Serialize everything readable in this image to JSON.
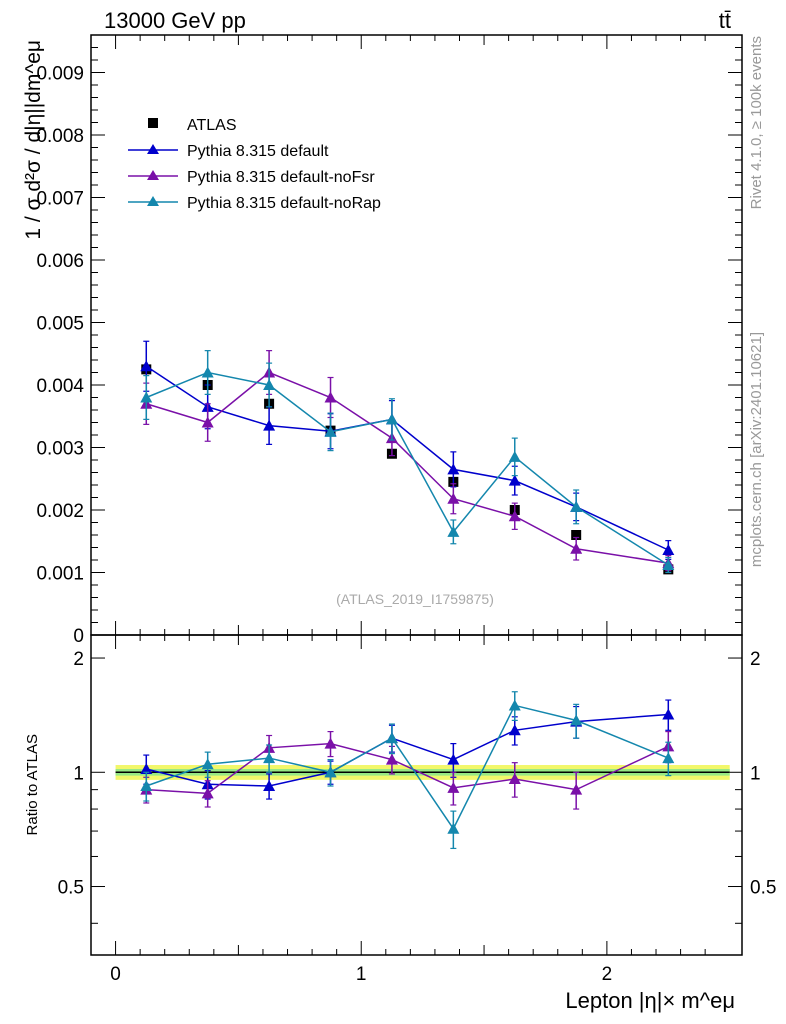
{
  "header": {
    "energy_label": "13000 GeV pp",
    "process_label": "tt̄"
  },
  "side_labels": {
    "rivet": "Rivet 4.1.0, ≥ 100k events",
    "mcplots": "mcplots.cern.ch [arXiv:2401.10621]"
  },
  "watermark": "(ATLAS_2019_I1759875)",
  "colors": {
    "data": "#000000",
    "default": "#0000cc",
    "noFsr": "#7a10a8",
    "noRap": "#1487ad",
    "band_outer": "#f2f76a",
    "band_inner": "#7fe38b"
  },
  "chart_data": [
    {
      "type": "scatter",
      "panel": "main",
      "ylabel": "1 / σ  d²σ / d|η||dm^eμ",
      "xlim": [
        -0.1,
        2.55
      ],
      "ylim": [
        0,
        0.0096
      ],
      "ytick_labels": [
        "0",
        "0.001",
        "0.002",
        "0.003",
        "0.004",
        "0.005",
        "0.006",
        "0.007",
        "0.008",
        "0.009"
      ],
      "ytick_values": [
        0,
        0.001,
        0.002,
        0.003,
        0.004,
        0.005,
        0.006,
        0.007,
        0.008,
        0.009
      ],
      "x": [
        0.125,
        0.375,
        0.625,
        0.875,
        1.125,
        1.375,
        1.625,
        1.875,
        2.25
      ],
      "legend": [
        "ATLAS",
        "Pythia 8.315 default",
        "Pythia 8.315 default-noFsr",
        "Pythia 8.315 default-noRap"
      ],
      "series": [
        {
          "name": "ATLAS",
          "marker": "square",
          "values": [
            0.00425,
            0.004,
            0.0037,
            0.00327,
            0.0029,
            0.00245,
            0.002,
            0.0016,
            0.00105
          ],
          "errors": [
            5e-05,
            5e-05,
            5e-05,
            4e-05,
            4e-05,
            4e-05,
            4e-05,
            3e-05,
            3e-05
          ]
        },
        {
          "name": "Pythia 8.315 default",
          "marker": "triangle",
          "values": [
            0.0043,
            0.00365,
            0.00335,
            0.00326,
            0.00345,
            0.00265,
            0.00247,
            0.00205,
            0.00136
          ],
          "errors": [
            0.0004,
            0.00035,
            0.0003,
            0.00028,
            0.0003,
            0.00028,
            0.00023,
            0.00022,
            0.00015
          ]
        },
        {
          "name": "Pythia 8.315 default-noFsr",
          "marker": "triangle",
          "values": [
            0.0037,
            0.0034,
            0.0042,
            0.0038,
            0.00315,
            0.00218,
            0.0019,
            0.00138,
            0.00115
          ],
          "errors": [
            0.00033,
            0.0003,
            0.00035,
            0.00032,
            0.00028,
            0.00024,
            0.00021,
            0.00018,
            0.00012
          ]
        },
        {
          "name": "Pythia 8.315 default-noRap",
          "marker": "triangle",
          "values": [
            0.0038,
            0.0042,
            0.004,
            0.00325,
            0.00345,
            0.00165,
            0.00285,
            0.00205,
            0.00112
          ],
          "errors": [
            0.00035,
            0.00035,
            0.00035,
            0.0003,
            0.00033,
            0.00019,
            0.0003,
            0.00027,
            0.00012
          ]
        }
      ]
    },
    {
      "type": "scatter",
      "panel": "ratio",
      "ylabel": "Ratio to ATLAS",
      "xlabel": "Lepton |η|× m^eμ",
      "xlim": [
        -0.1,
        2.55
      ],
      "ylim": [
        0.33,
        2.3
      ],
      "ytick_labels": [
        "0.5",
        "1",
        "2"
      ],
      "ytick_values": [
        0.5,
        1,
        2
      ],
      "xtick_labels": [
        "0",
        "1",
        "2"
      ],
      "xtick_values": [
        0,
        1,
        2
      ],
      "x": [
        0.125,
        0.375,
        0.625,
        0.875,
        1.125,
        1.375,
        1.625,
        1.875,
        2.25
      ],
      "band": {
        "inner": 0.02,
        "outer": 0.045
      },
      "series": [
        {
          "name": "Pythia 8.315 default",
          "values": [
            1.02,
            0.93,
            0.92,
            1.0,
            1.23,
            1.08,
            1.29,
            1.36,
            1.42
          ],
          "errors": [
            0.09,
            0.08,
            0.07,
            0.07,
            0.1,
            0.11,
            0.11,
            0.13,
            0.13
          ]
        },
        {
          "name": "Pythia 8.315 default-noFsr",
          "values": [
            0.9,
            0.88,
            1.16,
            1.19,
            1.08,
            0.91,
            0.96,
            0.9,
            1.17
          ],
          "errors": [
            0.07,
            0.07,
            0.09,
            0.09,
            0.09,
            0.09,
            0.1,
            0.1,
            0.11
          ]
        },
        {
          "name": "Pythia 8.315 default-noRap",
          "values": [
            0.92,
            1.05,
            1.09,
            1.0,
            1.23,
            0.71,
            1.5,
            1.37,
            1.09
          ],
          "errors": [
            0.08,
            0.08,
            0.09,
            0.08,
            0.11,
            0.08,
            0.13,
            0.14,
            0.11
          ]
        }
      ]
    }
  ]
}
